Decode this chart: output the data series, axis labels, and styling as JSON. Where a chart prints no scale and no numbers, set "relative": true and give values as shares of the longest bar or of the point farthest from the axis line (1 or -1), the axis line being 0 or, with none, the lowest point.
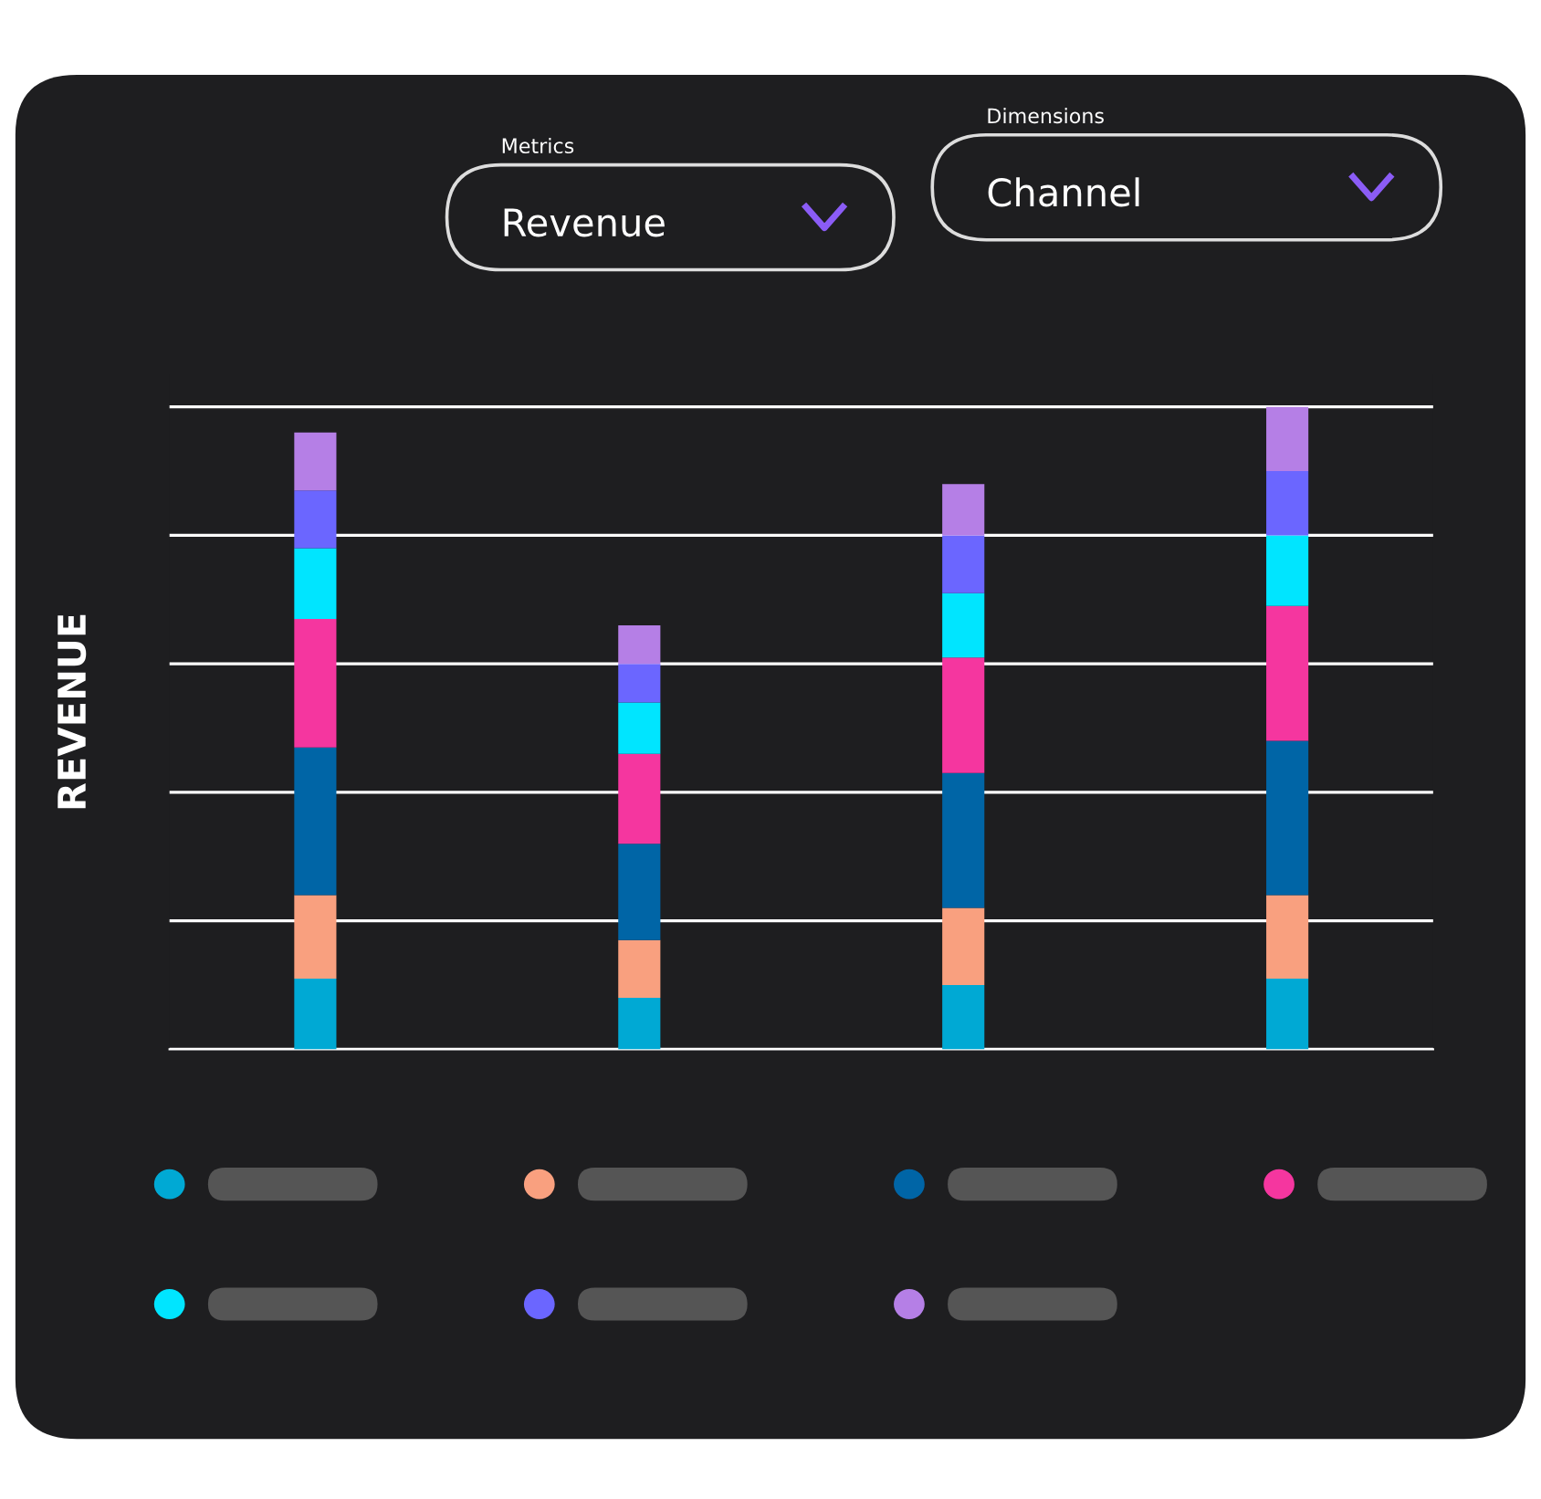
{
  "chart_data": {
    "type": "bar",
    "stacked": true,
    "relative": true,
    "ylabel": "REVENUE",
    "grid": "y",
    "categories": [
      null,
      null,
      null,
      null
    ],
    "annotations": [
      "Metrics",
      "Revenue",
      "Dimensions",
      "Channel"
    ],
    "series": [
      {
        "color": "#00a9d4",
        "values": [
          0.11,
          0.08,
          0.1,
          0.11
        ]
      },
      {
        "color": "#f9a07f",
        "values": [
          0.13,
          0.09,
          0.12,
          0.13
        ]
      },
      {
        "color": "#0065a6",
        "values": [
          0.23,
          0.15,
          0.21,
          0.24
        ]
      },
      {
        "color": "#f5369f",
        "values": [
          0.2,
          0.14,
          0.18,
          0.21
        ]
      },
      {
        "color": "#00e5ff",
        "values": [
          0.11,
          0.08,
          0.1,
          0.11
        ]
      },
      {
        "color": "#6b66ff",
        "values": [
          0.09,
          0.06,
          0.09,
          0.1
        ]
      },
      {
        "color": "#b57fe6",
        "values": [
          0.09,
          0.06,
          0.08,
          0.1
        ]
      }
    ]
  }
}
